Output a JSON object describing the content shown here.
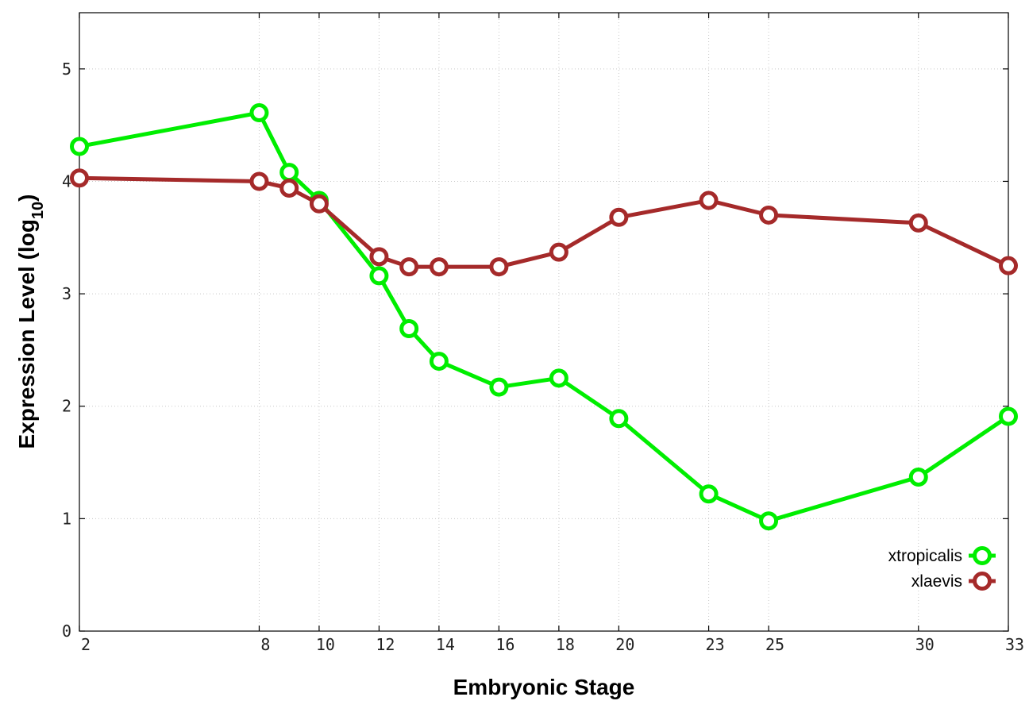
{
  "chart_data": {
    "type": "line",
    "xlabel": "Embryonic Stage",
    "ylabel_main": "Expression Level (log",
    "ylabel_sub": "10",
    "ylabel_close": ")",
    "x_ticks": [
      2,
      8,
      10,
      12,
      14,
      16,
      18,
      20,
      23,
      25,
      30,
      33
    ],
    "y_ticks": [
      0,
      1,
      2,
      3,
      4,
      5
    ],
    "xlim": [
      2,
      33
    ],
    "ylim": [
      0,
      5.5
    ],
    "grid": true,
    "legend_position": "bottom-right",
    "series": [
      {
        "name": "xtropicalis",
        "color": "#00ee00",
        "x": [
          2,
          8,
          9,
          10,
          12,
          13,
          14,
          16,
          18,
          20,
          23,
          25,
          30,
          33
        ],
        "y": [
          4.31,
          4.61,
          4.08,
          3.83,
          3.16,
          2.69,
          2.4,
          2.17,
          2.25,
          1.89,
          1.22,
          0.98,
          1.37,
          1.91
        ]
      },
      {
        "name": "xlaevis",
        "color": "#a52a2a",
        "x": [
          2,
          8,
          9,
          10,
          12,
          13,
          14,
          16,
          18,
          20,
          23,
          25,
          30,
          33
        ],
        "y": [
          4.03,
          4.0,
          3.94,
          3.8,
          3.33,
          3.24,
          3.24,
          3.24,
          3.37,
          3.68,
          3.83,
          3.7,
          3.63,
          3.25
        ]
      }
    ]
  }
}
